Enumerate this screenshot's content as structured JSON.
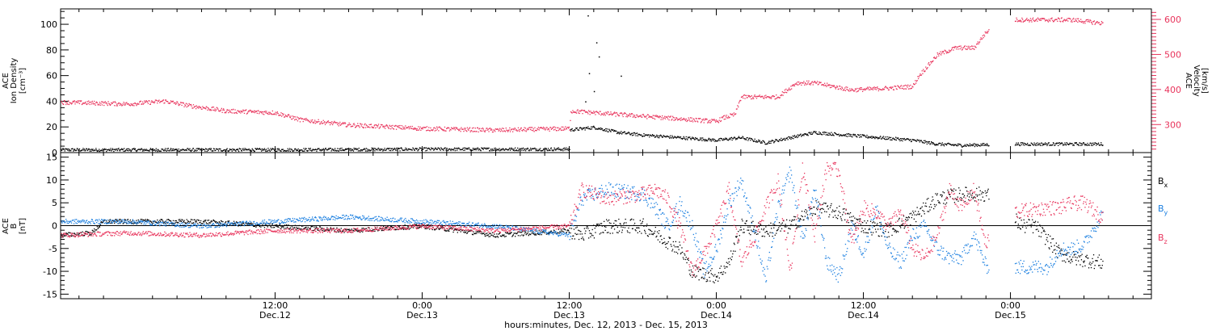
{
  "chart_data": {
    "type": "scatter",
    "x_title": "hours:minutes, Dec. 12, 2013 - Dec. 15, 2013",
    "x_ticks": [
      {
        "time": "12:00",
        "date": "Dec.12"
      },
      {
        "time": "0:00",
        "date": "Dec.13"
      },
      {
        "time": "12:00",
        "date": "Dec.13"
      },
      {
        "time": "0:00",
        "date": "Dec.14"
      },
      {
        "time": "12:00",
        "date": "Dec.14"
      },
      {
        "time": "0:00",
        "date": "Dec.15"
      }
    ],
    "x_range_hours": [
      -5.5,
      83.5
    ],
    "panels": [
      {
        "left_axis": {
          "title": [
            "ACE",
            "Ion Density",
            "[cm⁻³]"
          ],
          "ticks": [
            "0",
            "20",
            "40",
            "60",
            "80",
            "100"
          ],
          "ylim": [
            0,
            112
          ]
        },
        "right_axis": {
          "title": [
            "ACE",
            "Velocity",
            "[km/s]"
          ],
          "ticks": [
            "300",
            "400",
            "500",
            "600"
          ],
          "ylim": [
            220,
            630
          ],
          "color": "#e8345c"
        },
        "series": [
          {
            "key": "density",
            "axis": "left",
            "color": "#000000",
            "x": [
              -5.5,
              0,
              12,
              24,
              30,
              36,
              36.05,
              38,
              40,
              42,
              45,
              48,
              50,
              52,
              56,
              60,
              64,
              66,
              68,
              72,
              76,
              78,
              79.5
            ],
            "y": [
              2.5,
              2.5,
              2.5,
              3,
              3,
              3,
              18,
              20,
              16,
              14,
              12,
              10,
              12,
              8,
              16,
              13,
              10,
              7,
              6,
              7,
              7,
              7,
              7
            ]
          },
          {
            "key": "velocity",
            "axis": "right",
            "color": "#e8345c",
            "x": [
              -5.5,
              0,
              3,
              5,
              8,
              12,
              14,
              18,
              24,
              30,
              36,
              36.1,
              40,
              44,
              48,
              48.5,
              49.5,
              50,
              53,
              54.5,
              56,
              59,
              62,
              64,
              64.5,
              66,
              67.5,
              69,
              70,
              72,
              72.5,
              75,
              77,
              79.5
            ],
            "y": [
              365,
              360,
              368,
              355,
              340,
              335,
              315,
              300,
              290,
              285,
              290,
              340,
              330,
              320,
              310,
              320,
              330,
              380,
              380,
              420,
              420,
              400,
              405,
              410,
              440,
              500,
              520,
              520,
              565,
              600,
              600,
              600,
              600,
              590
            ]
          }
        ]
      },
      {
        "left_axis": {
          "title": [
            "ACE",
            "B",
            "[nT]"
          ],
          "ticks": [
            "-15",
            "-10",
            "-5",
            "0",
            "5",
            "10",
            "15"
          ],
          "ylim": [
            -16,
            16
          ]
        },
        "legend": [
          {
            "label": "B",
            "sub": "x",
            "color": "#000000"
          },
          {
            "label": "B",
            "sub": "y",
            "color": "#1b7fe0"
          },
          {
            "label": "B",
            "sub": "z",
            "color": "#e8345c"
          }
        ],
        "series": [
          {
            "key": "bx",
            "color": "#000000",
            "x": [
              -5.5,
              -3,
              -2,
              0,
              6,
              12,
              18,
              24,
              30,
              36,
              37,
              39,
              42,
              45,
              46,
              48,
              49,
              50,
              52,
              54,
              56,
              58,
              60,
              62,
              64,
              66,
              68,
              70,
              72,
              72.5,
              73,
              74,
              75,
              76,
              77,
              79.5
            ],
            "y": [
              -2,
              -1.5,
              1,
              1,
              1,
              0,
              -1,
              0,
              -2,
              -1,
              -2,
              0,
              0,
              -5,
              -10,
              -11,
              -8,
              0,
              -1,
              0,
              4,
              3,
              0,
              -1,
              2,
              6,
              7,
              7,
              3,
              1,
              0,
              0,
              -3,
              -6,
              -7,
              -8
            ]
          },
          {
            "key": "by",
            "color": "#1b7fe0",
            "x": [
              -5.5,
              0,
              6,
              12,
              18,
              24,
              30,
              36,
              37,
              39,
              42,
              43,
              44,
              45,
              46,
              47,
              48,
              49,
              50,
              51,
              52,
              53,
              54,
              55,
              56,
              57,
              58,
              59,
              60,
              61,
              62,
              63,
              64,
              65,
              66,
              67,
              68,
              69,
              70,
              71,
              72,
              75,
              76,
              77,
              78,
              79.5
            ],
            "y": [
              1,
              1,
              0,
              1,
              2,
              1,
              0,
              -2,
              6,
              8,
              7,
              4,
              0,
              5,
              0,
              -10,
              -5,
              5,
              10,
              0,
              -12,
              4,
              12,
              -3,
              8,
              -8,
              -11,
              0,
              -6,
              4,
              -5,
              -8,
              -2,
              0,
              -5,
              -7,
              -7,
              -2,
              -9,
              -6,
              -9,
              -9,
              -5,
              -5,
              -4,
              3
            ]
          },
          {
            "key": "bz",
            "color": "#e8345c",
            "x": [
              -5.5,
              0,
              6,
              12,
              18,
              24,
              30,
              36,
              37,
              39,
              42,
              43,
              44,
              45,
              46,
              47,
              48,
              49,
              50,
              51,
              52,
              53,
              54,
              55,
              56,
              57,
              58,
              59,
              60,
              61,
              62,
              63,
              64,
              65,
              66,
              67,
              68,
              69,
              70,
              71,
              72,
              75,
              76,
              77,
              78,
              79.5
            ],
            "y": [
              -2,
              -1.5,
              -2,
              -1,
              -1,
              0,
              -1,
              0,
              8,
              6,
              7,
              8,
              6,
              0,
              -10,
              -6,
              0,
              8,
              -8,
              -3,
              4,
              10,
              -10,
              13,
              -2,
              13,
              12,
              -4,
              4,
              3,
              0,
              3,
              -5,
              -7,
              -2,
              8,
              4,
              8,
              -5,
              10,
              3,
              4,
              4,
              5,
              5,
              2
            ]
          }
        ]
      }
    ]
  }
}
